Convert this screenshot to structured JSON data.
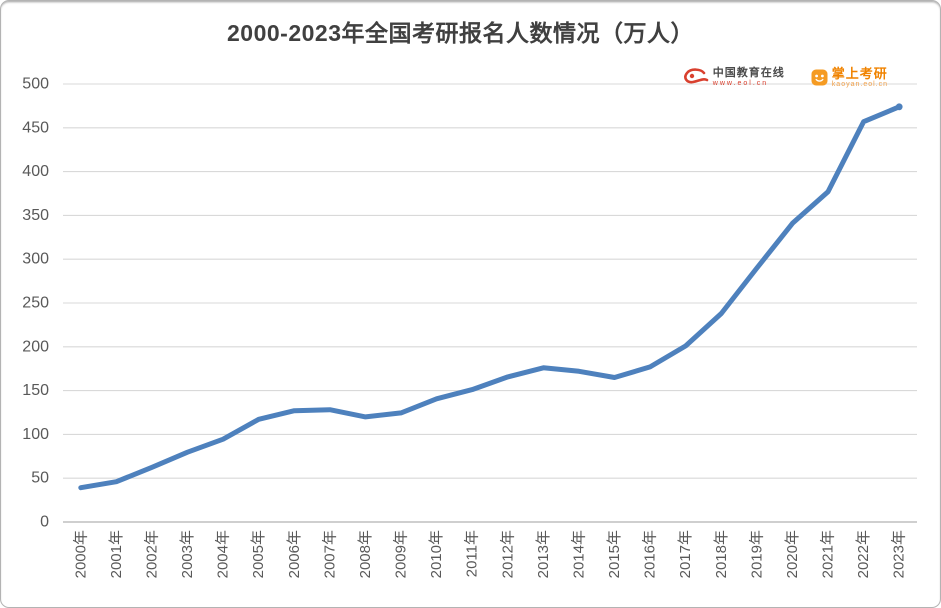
{
  "frame": {
    "background": "#ffffff",
    "border_color": "#b3b3b3"
  },
  "title": {
    "text": "2000-2023年全国考研报名人数情况（万人）",
    "color": "#404040"
  },
  "logos": {
    "eol": {
      "symbol": "eol",
      "name": "中国教育在线",
      "subtext": "www.eol.cn",
      "accent_color": "#d9402e",
      "text_color": "#4a4a4a"
    },
    "kaoyan": {
      "name": "掌上考研",
      "subtext": "kaoyan.eol.cn",
      "accent_color": "#f08300",
      "icon_color": "#f59b22"
    }
  },
  "chart_data": {
    "type": "line",
    "title": "2000-2023年全国考研报名人数情况（万人）",
    "categories": [
      "2000年",
      "2001年",
      "2002年",
      "2003年",
      "2004年",
      "2005年",
      "2006年",
      "2007年",
      "2008年",
      "2009年",
      "2010年",
      "2011年",
      "2012年",
      "2013年",
      "2014年",
      "2015年",
      "2016年",
      "2017年",
      "2018年",
      "2019年",
      "2020年",
      "2021年",
      "2022年",
      "2023年"
    ],
    "series": [
      {
        "name": "考研报名人数（万人）",
        "color": "#4e81bd",
        "values": [
          39.2,
          46,
          62.4,
          79.7,
          94.5,
          117.2,
          127.1,
          128.2,
          120,
          124.6,
          140.6,
          151.1,
          165.6,
          176,
          172,
          164.9,
          177,
          201,
          238,
          290,
          341,
          377,
          457,
          474
        ]
      }
    ],
    "xlabel": "",
    "ylabel": "",
    "ylim": [
      0,
      500
    ],
    "yticks": [
      0,
      50,
      100,
      150,
      200,
      250,
      300,
      350,
      400,
      450,
      500
    ],
    "grid": true,
    "gridline_color": "#d9d9d9",
    "axis_line_color": "#bfbfbf",
    "tick_label_color": "#595959",
    "x_label_rotation": 90,
    "legend": "none",
    "end_point_marker": true
  }
}
